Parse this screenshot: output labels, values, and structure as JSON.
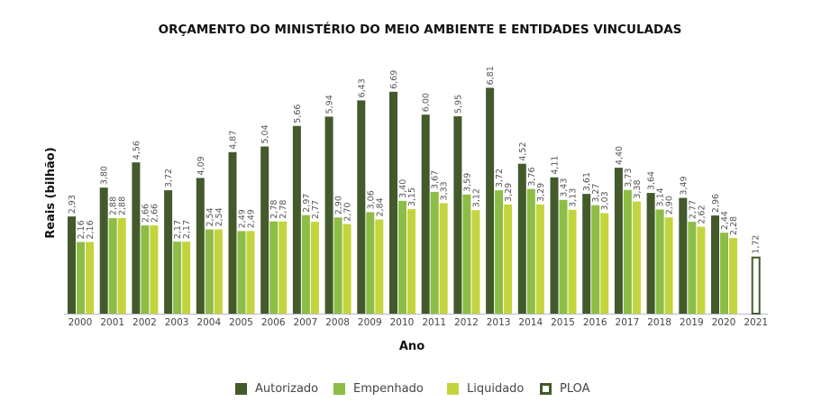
{
  "chart_data": {
    "type": "bar",
    "title": "ORÇAMENTO DO MINISTÉRIO DO MEIO AMBIENTE E ENTIDADES VINCULADAS",
    "xlabel": "Ano",
    "ylabel": "Reais (bilhão)",
    "categories": [
      "2000",
      "2001",
      "2002",
      "2003",
      "2004",
      "2005",
      "2006",
      "2007",
      "2008",
      "2009",
      "2010",
      "2011",
      "2012",
      "2013",
      "2014",
      "2015",
      "2016",
      "2017",
      "2018",
      "2019",
      "2020",
      "2021"
    ],
    "series": [
      {
        "name": "Autorizado",
        "color": "#435a2b",
        "values": [
          2.93,
          3.8,
          4.56,
          3.72,
          4.09,
          4.87,
          5.04,
          5.66,
          5.94,
          6.43,
          6.69,
          6.0,
          5.95,
          6.81,
          4.52,
          4.11,
          3.61,
          4.4,
          3.64,
          3.49,
          2.96,
          null
        ]
      },
      {
        "name": "Empenhado",
        "color": "#8dbd45",
        "values": [
          2.16,
          2.88,
          2.66,
          2.17,
          2.54,
          2.49,
          2.78,
          2.97,
          2.9,
          3.06,
          3.4,
          3.67,
          3.59,
          3.72,
          3.76,
          3.43,
          3.27,
          3.73,
          3.14,
          2.77,
          2.44,
          null
        ]
      },
      {
        "name": "Liquidado",
        "color": "#c4d43c",
        "values": [
          2.16,
          2.88,
          2.66,
          2.17,
          2.54,
          2.49,
          2.78,
          2.77,
          2.7,
          2.84,
          3.15,
          3.33,
          3.12,
          3.29,
          3.29,
          3.13,
          3.03,
          3.38,
          2.9,
          2.62,
          2.28,
          null
        ]
      },
      {
        "name": "PLOA",
        "color": "#435a2b",
        "outline": true,
        "values": [
          null,
          null,
          null,
          null,
          null,
          null,
          null,
          null,
          null,
          null,
          null,
          null,
          null,
          null,
          null,
          null,
          null,
          null,
          null,
          null,
          null,
          1.72
        ]
      }
    ],
    "value_labels": [
      [
        "2,93",
        "3,80",
        "4,56",
        "3,72",
        "4,09",
        "4,87",
        "5,04",
        "5,66",
        "5,94",
        "6,43",
        "6,69",
        "6,00",
        "5,95",
        "6,81",
        "4,52",
        "4,11",
        "3,61",
        "4,40",
        "3,64",
        "3,49",
        "2,96",
        null
      ],
      [
        "2,16",
        "2,88",
        "2,66",
        "2,17",
        "2,54",
        "2,49",
        "2,78",
        "2,97",
        "2,90",
        "3,06",
        "3,40",
        "3,67",
        "3,59",
        "3,72",
        "3,76",
        "3,43",
        "3,27",
        "3,73",
        "3,14",
        "2,77",
        "2,44",
        null
      ],
      [
        "2,16",
        "2,88",
        "2,66",
        "2,17",
        "2,54",
        "2,49",
        "2,78",
        "2,77",
        "2,70",
        "2,84",
        "3,15",
        "3,33",
        "3,12",
        "3,29",
        "3,29",
        "3,13",
        "3,03",
        "3,38",
        "2,90",
        "2,62",
        "2,28",
        null
      ],
      [
        null,
        null,
        null,
        null,
        null,
        null,
        null,
        null,
        null,
        null,
        null,
        null,
        null,
        null,
        null,
        null,
        null,
        null,
        null,
        null,
        null,
        "1,72"
      ]
    ],
    "ylim": [
      0,
      7
    ],
    "grid": false,
    "y_axis_ticks_shown": false,
    "legend_position": "bottom"
  }
}
